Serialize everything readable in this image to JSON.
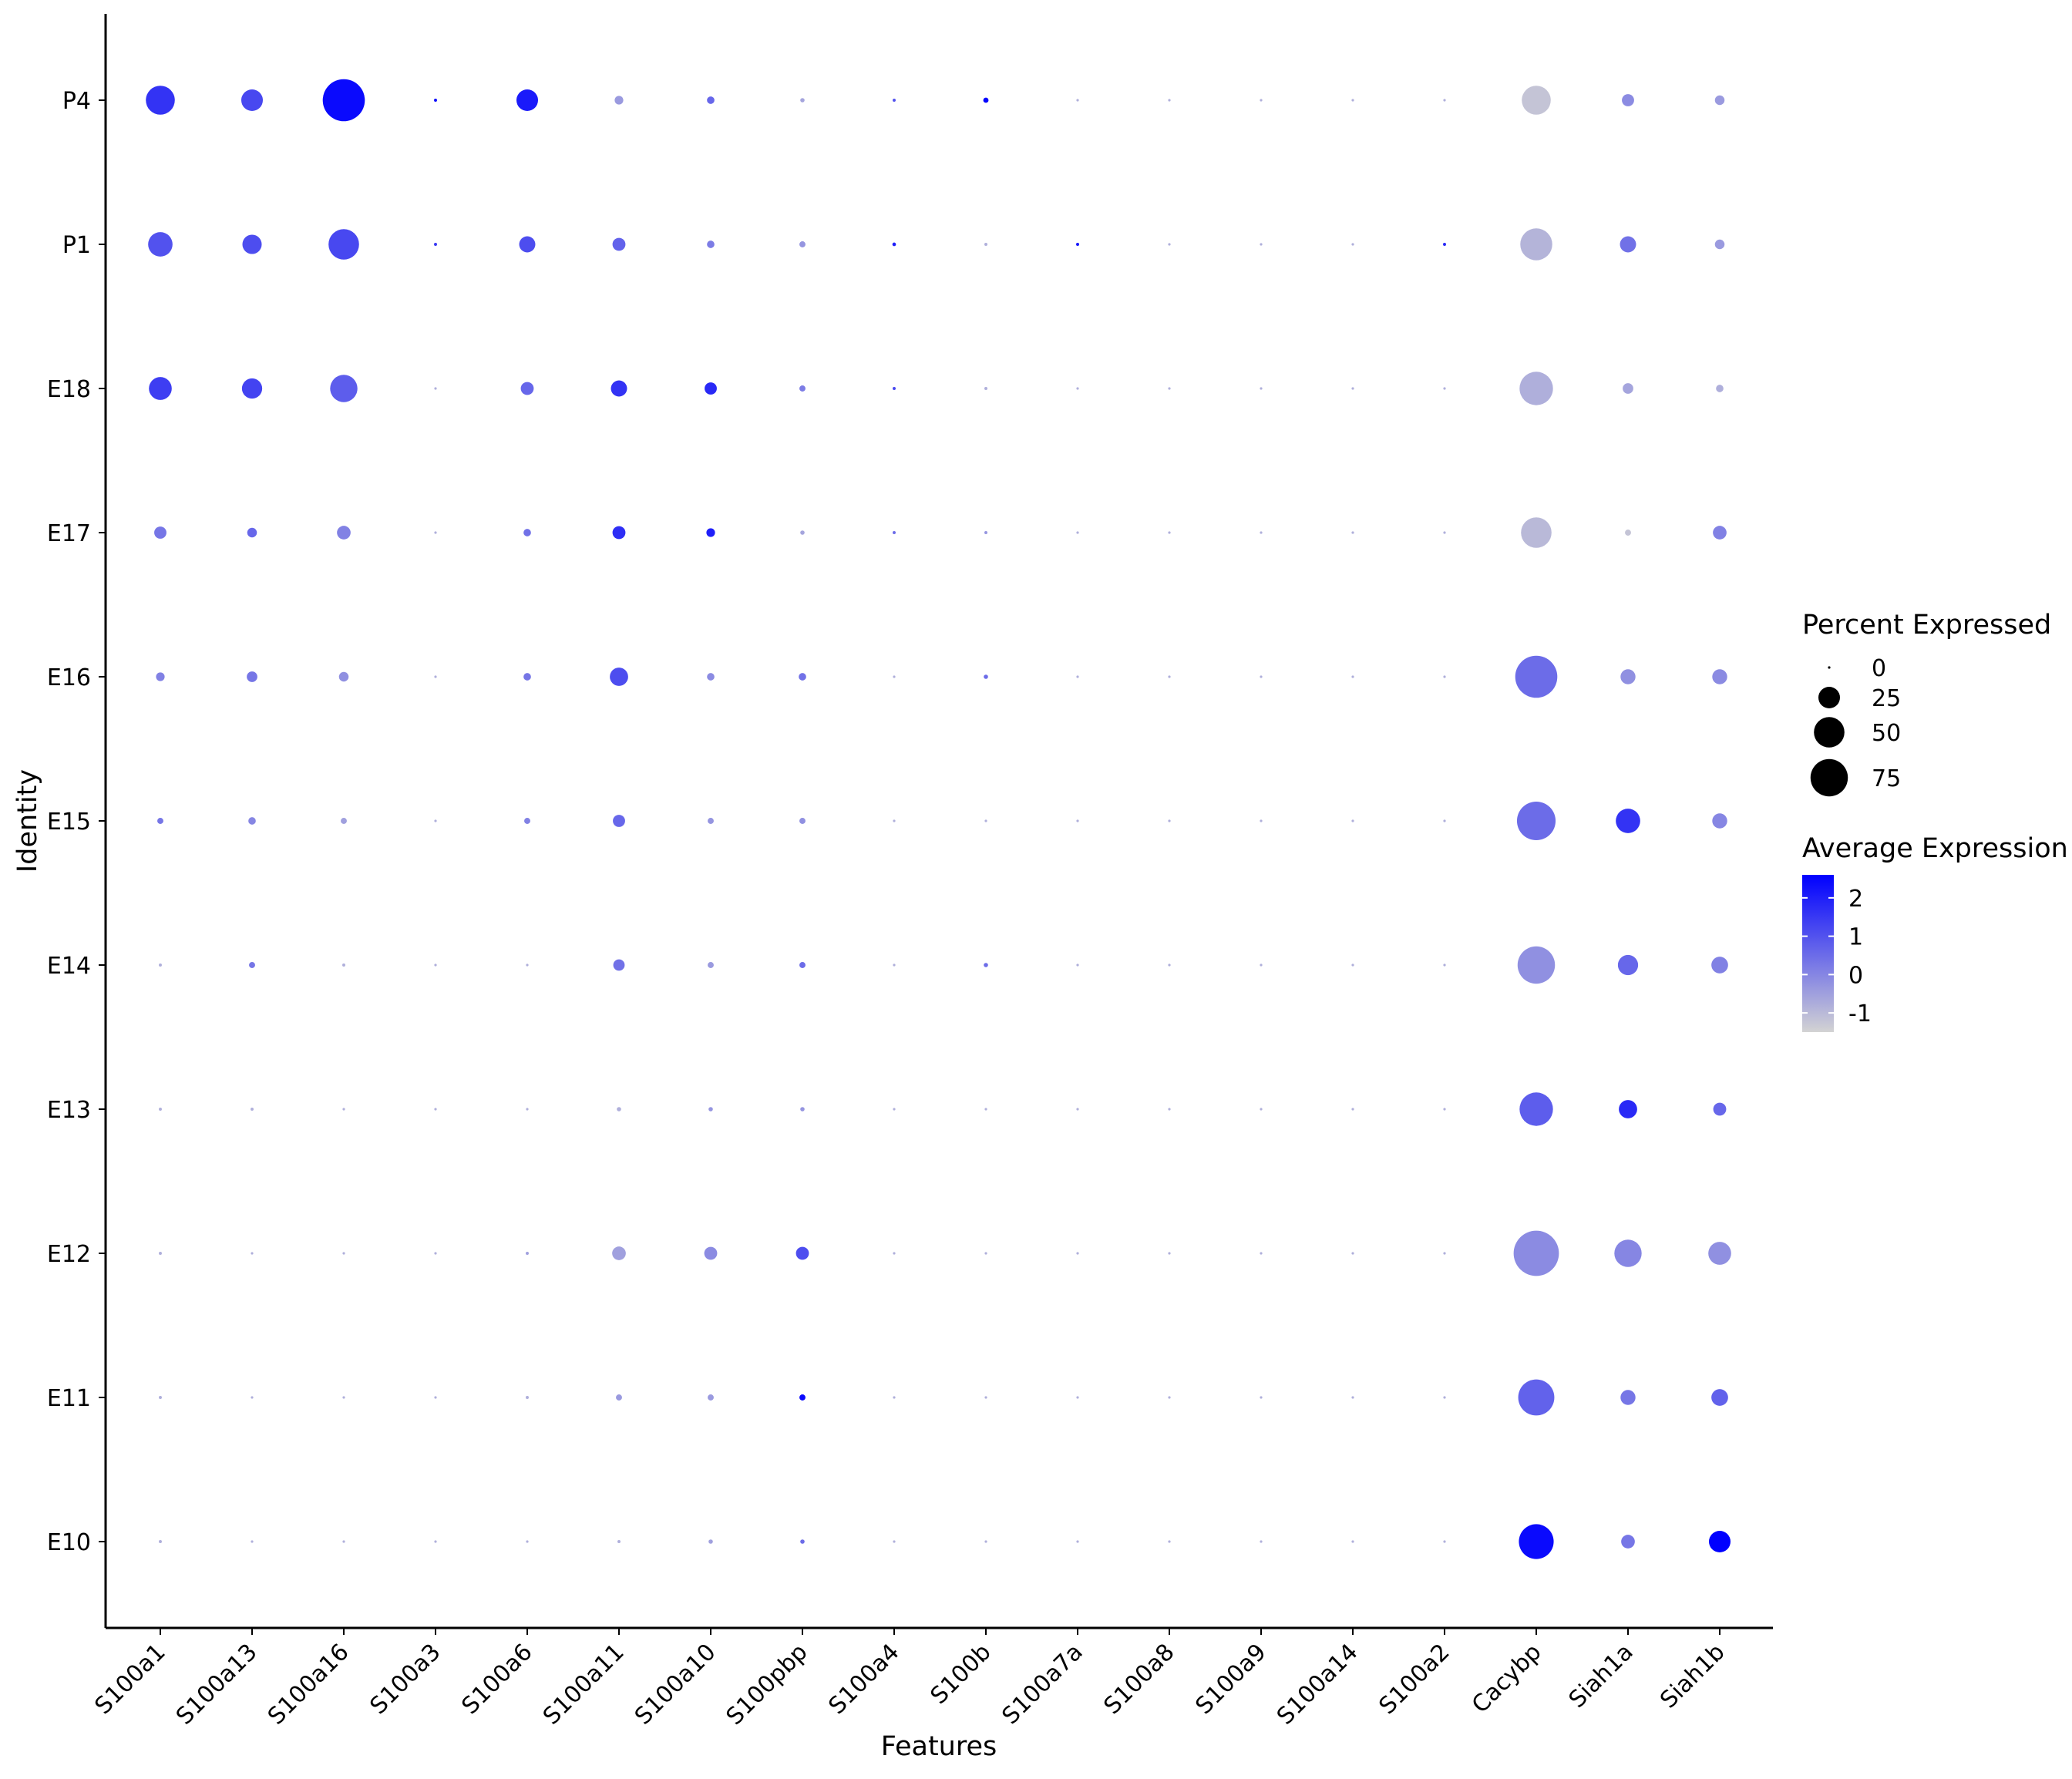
{
  "chart_data": {
    "type": "dot",
    "xlabel": "Features",
    "ylabel": "Identity",
    "features": [
      "S100a1",
      "S100a13",
      "S100a16",
      "S100a3",
      "S100a6",
      "S100a11",
      "S100a10",
      "S100pbp",
      "S100a4",
      "S100b",
      "S100a7a",
      "S100a8",
      "S100a9",
      "S100a14",
      "S100a2",
      "Cacybp",
      "Siah1a",
      "Siah1b"
    ],
    "identities": [
      "P4",
      "P1",
      "E18",
      "E17",
      "E16",
      "E15",
      "E14",
      "E13",
      "E12",
      "E11",
      "E10"
    ],
    "percent_expressed": [
      [
        45,
        25,
        95,
        0.5,
        25,
        4,
        3,
        1,
        0.5,
        1.5,
        0.3,
        0.3,
        0.3,
        0.3,
        0.3,
        45,
        8,
        5
      ],
      [
        32,
        20,
        50,
        0.5,
        14,
        9,
        3,
        2,
        0.7,
        0.5,
        0.5,
        0.3,
        0.3,
        0.3,
        0.5,
        55,
        14,
        5
      ],
      [
        28,
        22,
        40,
        0.3,
        9,
        14,
        8,
        2,
        0.5,
        0.5,
        0.3,
        0.3,
        0.3,
        0.3,
        0.3,
        60,
        6,
        3
      ],
      [
        8,
        5,
        10,
        0.3,
        3,
        9,
        4,
        1,
        0.5,
        0.5,
        0.3,
        0.3,
        0.3,
        0.3,
        0.3,
        50,
        2,
        10
      ],
      [
        4,
        6,
        5,
        0.3,
        3,
        18,
        3,
        3,
        0.3,
        1,
        0.3,
        0.3,
        0.3,
        0.3,
        0.3,
        95,
        12,
        12
      ],
      [
        2,
        3,
        2,
        0.3,
        2,
        8,
        2,
        2,
        0.3,
        0.3,
        0.3,
        0.3,
        0.3,
        0.3,
        0.3,
        80,
        32,
        12
      ],
      [
        0.5,
        2,
        0.5,
        0.3,
        0.3,
        7,
        2,
        2,
        0.3,
        1,
        0.3,
        0.3,
        0.3,
        0.3,
        0.3,
        75,
        22,
        15
      ],
      [
        0.5,
        0.5,
        0.3,
        0.3,
        0.3,
        1,
        1,
        1,
        0.3,
        0.3,
        0.3,
        0.3,
        0.3,
        0.3,
        0.3,
        60,
        18,
        9
      ],
      [
        0.5,
        0.3,
        0.3,
        0.3,
        0.5,
        10,
        9,
        9,
        0.3,
        0.3,
        0.3,
        0.3,
        0.3,
        0.3,
        0.3,
        110,
        40,
        28
      ],
      [
        0.5,
        0.3,
        0.3,
        0.3,
        0.5,
        2,
        2,
        2,
        0.3,
        0.3,
        0.3,
        0.3,
        0.3,
        0.3,
        0.3,
        70,
        12,
        15
      ],
      [
        0.5,
        0.3,
        0.3,
        0.3,
        0.3,
        0.5,
        1,
        1,
        0.3,
        0.3,
        0.3,
        0.3,
        0.3,
        0.3,
        0.3,
        65,
        10,
        25
      ]
    ],
    "average_expression": [
      [
        1.6,
        1.2,
        2.4,
        2.3,
        2.1,
        -0.4,
        0.6,
        -0.6,
        1.0,
        2.5,
        -0.8,
        -0.8,
        -0.8,
        -0.8,
        -0.8,
        -1.2,
        -0.1,
        -0.4
      ],
      [
        1.0,
        1.1,
        1.2,
        1.5,
        1.1,
        0.7,
        0.2,
        -0.3,
        2.0,
        -0.8,
        2.2,
        -0.8,
        -0.8,
        -0.8,
        1.8,
        -0.9,
        0.4,
        -0.4
      ],
      [
        1.4,
        1.3,
        0.8,
        -0.8,
        0.6,
        1.6,
        1.8,
        0.2,
        1.2,
        -0.8,
        -0.8,
        -0.8,
        -0.8,
        -0.8,
        -0.8,
        -0.8,
        -0.6,
        -0.8
      ],
      [
        0.3,
        0.6,
        0.1,
        -0.8,
        0.4,
        1.7,
        2.0,
        -0.6,
        0.5,
        -0.3,
        -0.8,
        -0.8,
        -0.8,
        -0.8,
        -0.8,
        -1.0,
        -1.2,
        0.1
      ],
      [
        0.1,
        0.3,
        -0.2,
        -0.8,
        0.3,
        1.1,
        -0.1,
        0.4,
        -0.8,
        0.5,
        -0.8,
        -0.8,
        -0.8,
        -0.8,
        -0.8,
        0.5,
        -0.2,
        -0.1
      ],
      [
        0.3,
        0.0,
        -0.5,
        -0.8,
        0.1,
        0.6,
        -0.3,
        -0.2,
        -0.8,
        -0.8,
        -0.8,
        -0.8,
        -0.8,
        -0.8,
        -0.8,
        0.5,
        1.6,
        0.0
      ],
      [
        -0.8,
        0.3,
        -0.8,
        -0.8,
        -0.8,
        0.4,
        -0.4,
        0.5,
        -0.8,
        0.5,
        -0.8,
        -0.8,
        -0.8,
        -0.8,
        -0.8,
        -0.2,
        0.6,
        0.1
      ],
      [
        -0.8,
        -0.8,
        -0.8,
        -0.8,
        -0.8,
        -0.8,
        -0.3,
        -0.3,
        -0.8,
        -0.8,
        -0.8,
        -0.8,
        -0.8,
        -0.8,
        -0.8,
        0.8,
        1.8,
        0.6
      ],
      [
        -0.8,
        -0.8,
        -0.8,
        -0.8,
        -0.5,
        -0.5,
        -0.1,
        1.1,
        -0.8,
        -0.8,
        -0.8,
        -0.8,
        -0.8,
        -0.8,
        -0.8,
        -0.1,
        0.0,
        -0.2
      ],
      [
        -0.8,
        -0.8,
        -0.8,
        -0.8,
        -0.8,
        -0.4,
        -0.4,
        2.4,
        -0.8,
        -0.8,
        -0.8,
        -0.8,
        -0.8,
        -0.8,
        -0.8,
        0.7,
        0.3,
        0.7
      ],
      [
        -0.8,
        -0.8,
        -0.8,
        -0.8,
        -0.8,
        -0.8,
        -0.5,
        0.5,
        -0.8,
        -0.8,
        -0.8,
        -0.8,
        -0.8,
        -0.8,
        -0.8,
        2.4,
        0.3,
        2.6
      ]
    ],
    "size_legend": {
      "title": "Percent Expressed",
      "values": [
        0,
        25,
        50,
        75
      ]
    },
    "color_legend": {
      "title": "Average Expression",
      "ticks": [
        2,
        1,
        0,
        -1
      ],
      "range": [
        -1.5,
        2.6
      ],
      "low_color": "#D3D3D3",
      "high_color": "#0000FF"
    }
  }
}
